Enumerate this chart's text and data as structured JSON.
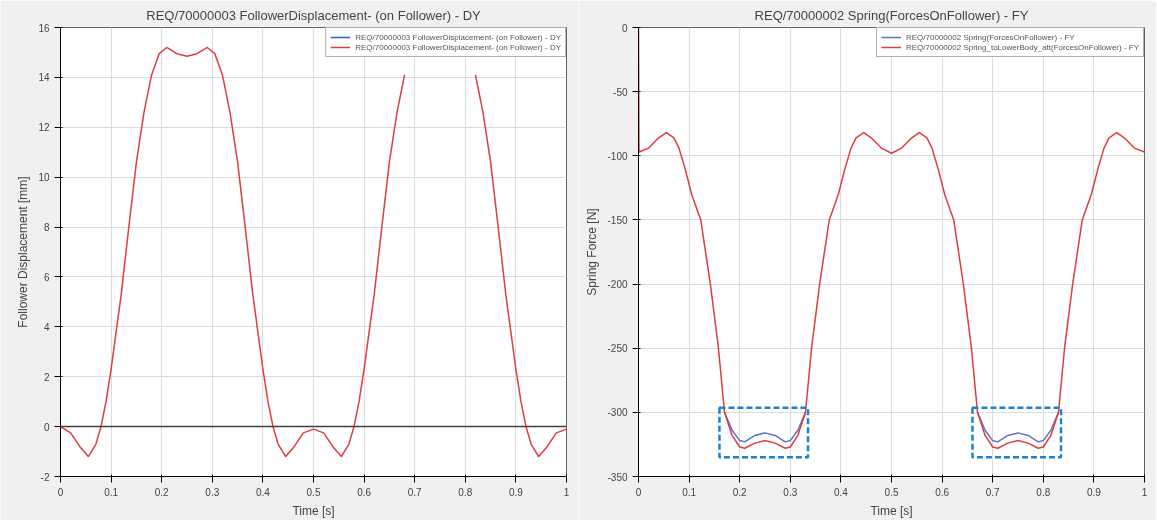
{
  "chart_data": [
    {
      "type": "line",
      "title": "REQ/70000003 FollowerDisplacement- (on Follower) - DY",
      "xlabel": "Time [s]",
      "ylabel": "Follower Displacement [mm]",
      "xlim": [
        0,
        1
      ],
      "xticks": [
        0,
        0.1,
        0.2,
        0.3,
        0.4,
        0.5,
        0.6,
        0.7,
        0.8,
        0.9,
        1
      ],
      "ylim": [
        -2,
        16
      ],
      "yticks": [
        -2,
        0,
        2,
        4,
        6,
        8,
        10,
        12,
        14,
        16
      ],
      "grid": true,
      "legend": "top right",
      "ref_lines": [
        {
          "axis": "y",
          "value": 0,
          "color": "#404040"
        }
      ],
      "series": [
        {
          "name": "REQ/70000003 FollowerDisplacement- (on Follower) - DY",
          "color": "#3060c0"
        },
        {
          "name": "REQ/70000003 FollowerDisplacement- (on Follower) - DY",
          "color": "#e03c3c",
          "x": [
            0,
            0.02,
            0.04,
            0.055,
            0.07,
            0.08,
            0.09,
            0.1,
            0.12,
            0.135,
            0.15,
            0.165,
            0.18,
            0.195,
            0.21,
            0.23,
            0.25,
            0.27,
            0.29,
            0.305,
            0.32,
            0.335,
            0.35,
            0.365,
            0.38,
            0.4,
            0.41,
            0.42,
            0.43,
            0.445,
            0.46,
            0.48,
            0.5,
            0.52,
            0.54,
            0.555,
            0.57,
            0.58,
            0.59,
            0.6,
            0.62,
            0.635,
            0.65,
            0.665,
            0.68,
            0.695,
            0.75,
            0.805,
            0.82,
            0.835,
            0.85,
            0.865,
            0.88,
            0.9,
            0.91,
            0.92,
            0.93,
            0.945,
            0.96,
            0.98,
            1
          ],
          "values": [
            0,
            -0.25,
            -0.85,
            -1.2,
            -0.7,
            0,
            1.0,
            2.3,
            5.3,
            8,
            10.6,
            12.6,
            14.1,
            14.95,
            15.2,
            14.95,
            14.85,
            14.95,
            15.2,
            14.95,
            14.1,
            12.6,
            10.6,
            8,
            5.3,
            2.3,
            1.0,
            0,
            -0.7,
            -1.2,
            -0.85,
            -0.25,
            -0.1,
            -0.25,
            -0.85,
            -1.2,
            -0.7,
            0,
            1.0,
            2.3,
            5.3,
            8,
            10.6,
            12.6,
            14.1,
            null,
            null,
            null,
            14.1,
            12.6,
            10.6,
            8,
            5.3,
            2.3,
            1.0,
            0,
            -0.7,
            -1.2,
            -0.85,
            -0.25,
            -0.1
          ]
        }
      ]
    },
    {
      "type": "line",
      "title": "REQ/70000002 Spring(ForcesOnFollower) - FY",
      "xlabel": "Time [s]",
      "ylabel": "Spring Force [N]",
      "xlim": [
        0,
        1
      ],
      "xticks": [
        0,
        0.1,
        0.2,
        0.3,
        0.4,
        0.5,
        0.6,
        0.7,
        0.8,
        0.9,
        1
      ],
      "ylim": [
        -350,
        0
      ],
      "yticks": [
        -350,
        -300,
        -250,
        -200,
        -150,
        -100,
        -50,
        0
      ],
      "grid": true,
      "legend": "top right",
      "series": [
        {
          "name": "REQ/70000002 Spring(ForcesOnFollower) - FY",
          "color": "#6070c8",
          "x": [
            0.17,
            0.185,
            0.2,
            0.21,
            0.23,
            0.25,
            0.27,
            0.29,
            0.3,
            0.315,
            0.33,
            0.5,
            0.67,
            0.685,
            0.7,
            0.71,
            0.73,
            0.75,
            0.77,
            0.79,
            0.8,
            0.815,
            0.83
          ],
          "values": [
            -300,
            -314,
            -322,
            -323,
            -318,
            -316,
            -318,
            -323,
            -322,
            -314,
            -300,
            null,
            -300,
            -314,
            -322,
            -323,
            -318,
            -316,
            -318,
            -323,
            -322,
            -314,
            -300
          ]
        },
        {
          "name": "REQ/70000002 Spring_toLowerBody_att(ForcesOnFollower) - FY",
          "color": "#e03c3c",
          "x": [
            0,
            0.001,
            0.02,
            0.04,
            0.055,
            0.07,
            0.08,
            0.092,
            0.105,
            0.123,
            0.142,
            0.158,
            0.17,
            0.185,
            0.2,
            0.21,
            0.23,
            0.25,
            0.27,
            0.29,
            0.3,
            0.315,
            0.33,
            0.342,
            0.358,
            0.377,
            0.395,
            0.408,
            0.42,
            0.43,
            0.445,
            0.46,
            0.48,
            0.5,
            0.52,
            0.54,
            0.555,
            0.57,
            0.58,
            0.592,
            0.605,
            0.623,
            0.642,
            0.658,
            0.67,
            0.685,
            0.7,
            0.71,
            0.73,
            0.75,
            0.77,
            0.79,
            0.8,
            0.815,
            0.83,
            0.842,
            0.858,
            0.877,
            0.895,
            0.908,
            0.92,
            0.93,
            0.945,
            0.96,
            0.98,
            1
          ],
          "values": [
            0,
            -97,
            -94,
            -86,
            -82,
            -86,
            -94,
            -110,
            -130,
            -150,
            -200,
            -250,
            -300,
            -318,
            -327,
            -328,
            -324,
            -322,
            -324,
            -328,
            -327,
            -318,
            -300,
            -250,
            -200,
            -150,
            -130,
            -110,
            -94,
            -86,
            -82,
            -86,
            -94,
            -98,
            -94,
            -86,
            -82,
            -86,
            -94,
            -110,
            -130,
            -150,
            -200,
            -250,
            -300,
            -318,
            -327,
            -328,
            -324,
            -322,
            -324,
            -328,
            -327,
            -318,
            -300,
            -250,
            -200,
            -150,
            -130,
            -110,
            -94,
            -86,
            -82,
            -86,
            -94,
            -97
          ]
        }
      ]
    }
  ]
}
